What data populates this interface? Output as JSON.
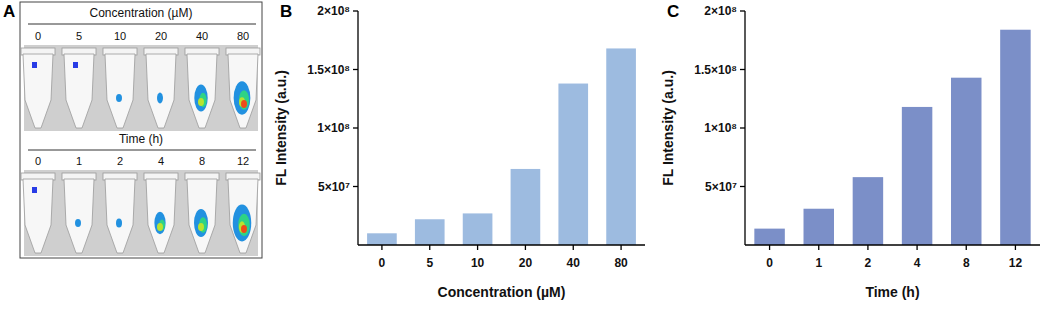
{
  "panel_a": {
    "panel_label": "A",
    "rows": [
      {
        "title": "Concentration (µM)",
        "labels": [
          "0",
          "5",
          "10",
          "20",
          "40",
          "80"
        ]
      },
      {
        "title": "Time (h)",
        "labels": [
          "0",
          "1",
          "2",
          "4",
          "8",
          "12"
        ]
      }
    ]
  },
  "chart_data": [
    {
      "type": "bar",
      "panel_label": "B",
      "x_label": "Concentration (µM)",
      "y_label": "FL Intensity (a.u.)",
      "categories": [
        "0",
        "5",
        "10",
        "20",
        "40",
        "80"
      ],
      "values": [
        10000000,
        22000000,
        27000000,
        65000000,
        138000000,
        168000000
      ],
      "color": "#9dbbe0",
      "ylim": [
        0,
        200000000
      ],
      "yticks": [
        {
          "value": 50000000,
          "label": "5×10⁷"
        },
        {
          "value": 100000000,
          "label": "1×10⁸"
        },
        {
          "value": 150000000,
          "label": "1.5×10⁸"
        },
        {
          "value": 200000000,
          "label": "2×10⁸"
        }
      ],
      "grid": false
    },
    {
      "type": "bar",
      "panel_label": "C",
      "x_label": "Time (h)",
      "y_label": "FL Intensity (a.u.)",
      "categories": [
        "0",
        "1",
        "2",
        "4",
        "8",
        "12"
      ],
      "values": [
        14000000,
        31000000,
        58000000,
        118000000,
        143000000,
        184000000
      ],
      "color": "#7b8fc8",
      "ylim": [
        0,
        200000000
      ],
      "yticks": [
        {
          "value": 50000000,
          "label": "5×10⁷"
        },
        {
          "value": 100000000,
          "label": "1×10⁸"
        },
        {
          "value": 150000000,
          "label": "1.5×10⁸"
        },
        {
          "value": 200000000,
          "label": "2×10⁸"
        }
      ],
      "grid": false
    }
  ]
}
